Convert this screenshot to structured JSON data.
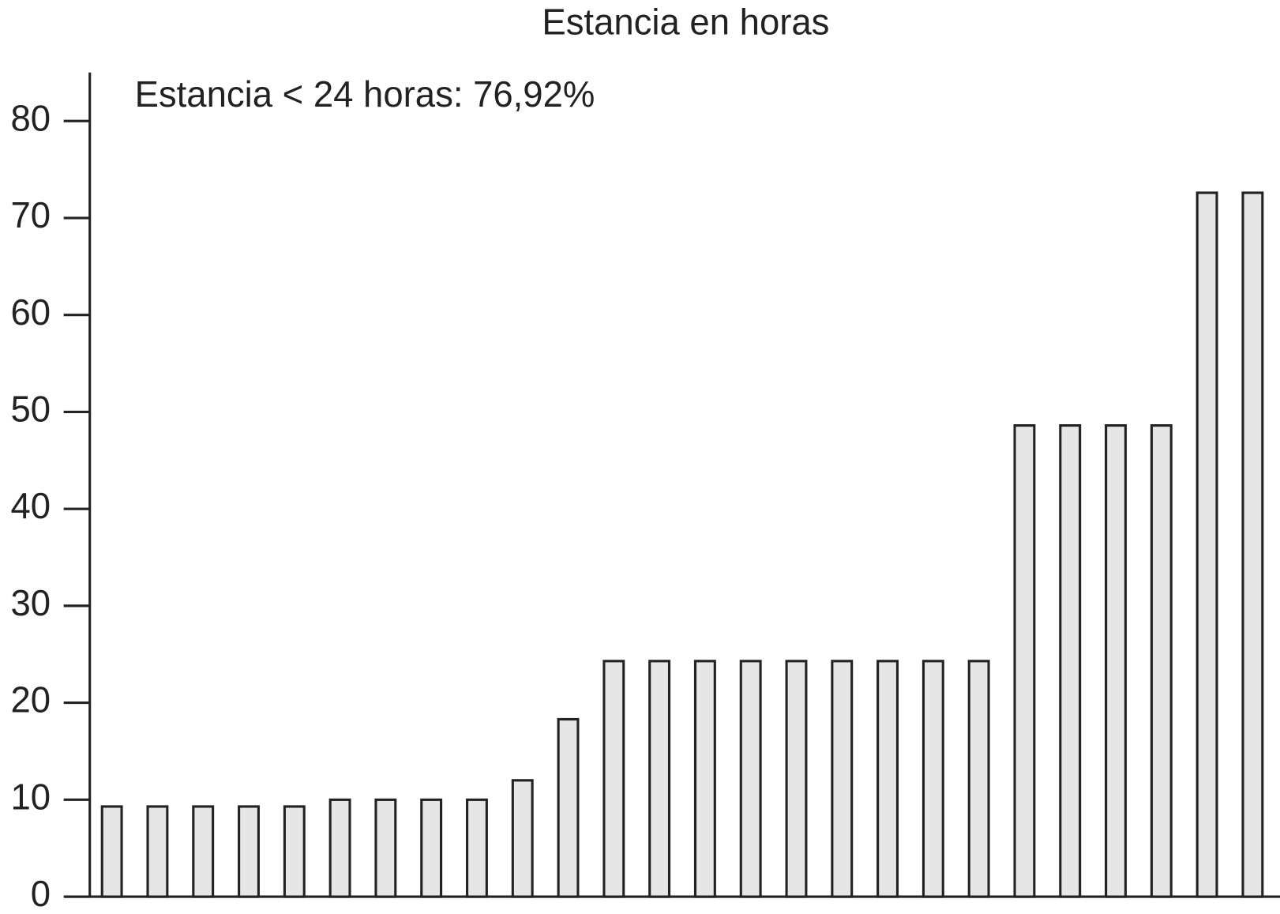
{
  "chart_data": {
    "type": "bar",
    "title": "Estancia en horas",
    "annotation": "Estancia < 24 horas: 76,92%",
    "categories": [
      null,
      null,
      null,
      null,
      null,
      null,
      null,
      null,
      null,
      null,
      null,
      null,
      null,
      null,
      null,
      null,
      null,
      null,
      null,
      null,
      null,
      null,
      null,
      null,
      null,
      null
    ],
    "values": [
      9.3,
      9.3,
      9.3,
      9.3,
      9.3,
      10,
      10,
      10,
      10,
      12,
      18.3,
      24.3,
      24.3,
      24.3,
      24.3,
      24.3,
      24.3,
      24.3,
      24.3,
      24.3,
      48.6,
      48.6,
      48.6,
      48.6,
      72.6,
      72.6
    ],
    "color": "#e6e6e6",
    "ylim": [
      0,
      85
    ],
    "yticks": [
      0,
      10,
      20,
      30,
      40,
      50,
      60,
      70,
      80
    ],
    "grid": false
  }
}
